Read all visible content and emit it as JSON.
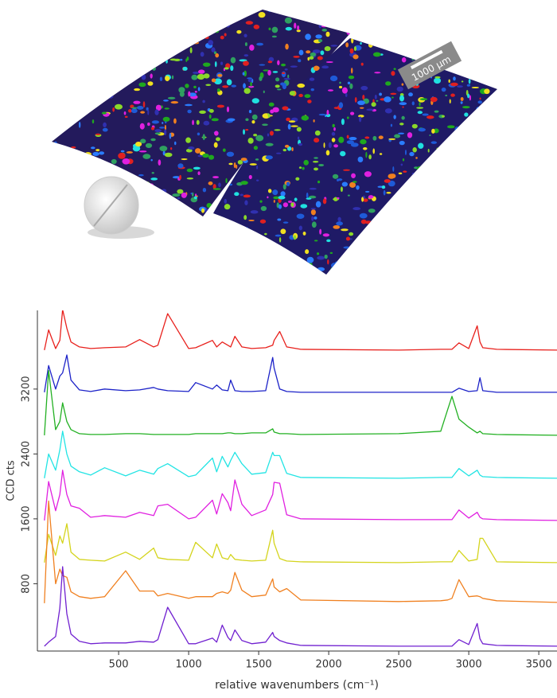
{
  "image": {
    "scale_bar_label": "1000 µm"
  },
  "chart_data": {
    "type": "line",
    "x_label": "relative wavenumbers (cm⁻¹)",
    "y_label": "CCD cts",
    "x": [
      -30,
      0,
      50,
      80,
      100,
      130,
      160,
      220,
      300,
      400,
      550,
      650,
      750,
      780,
      850,
      1000,
      1050,
      1170,
      1200,
      1240,
      1280,
      1300,
      1330,
      1380,
      1450,
      1550,
      1600,
      1610,
      1650,
      1700,
      1800,
      2500,
      2800,
      2850,
      2880,
      2930,
      3000,
      3060,
      3080,
      3100,
      3200,
      3630
    ],
    "series": [
      {
        "color": "#e8201c",
        "values": [
          3680,
          3930,
          3700,
          3800,
          4180,
          3950,
          3780,
          3720,
          3700,
          3710,
          3720,
          3810,
          3720,
          3740,
          4130,
          3700,
          3710,
          3800,
          3720,
          3780,
          3740,
          3720,
          3850,
          3720,
          3700,
          3710,
          3740,
          3800,
          3910,
          3720,
          3690,
          3680,
          3690,
          3690,
          3690,
          3770,
          3700,
          3980,
          3780,
          3710,
          3690,
          3680
        ]
      },
      {
        "color": "#1c22c8",
        "values": [
          3160,
          3490,
          3200,
          3360,
          3400,
          3620,
          3310,
          3190,
          3170,
          3200,
          3180,
          3190,
          3220,
          3200,
          3180,
          3170,
          3280,
          3200,
          3250,
          3190,
          3180,
          3310,
          3180,
          3170,
          3170,
          3180,
          3590,
          3460,
          3200,
          3170,
          3160,
          3160,
          3160,
          3160,
          3160,
          3210,
          3170,
          3180,
          3340,
          3180,
          3160,
          3160
        ]
      },
      {
        "color": "#22b022",
        "values": [
          2630,
          3430,
          2700,
          2800,
          3030,
          2800,
          2700,
          2650,
          2640,
          2640,
          2650,
          2650,
          2640,
          2640,
          2640,
          2640,
          2650,
          2650,
          2650,
          2650,
          2660,
          2660,
          2650,
          2650,
          2660,
          2660,
          2710,
          2670,
          2650,
          2650,
          2640,
          2650,
          2680,
          2950,
          3110,
          2830,
          2730,
          2660,
          2680,
          2650,
          2640,
          2630
        ]
      },
      {
        "color": "#22e4e4",
        "values": [
          2100,
          2400,
          2200,
          2450,
          2680,
          2400,
          2250,
          2180,
          2140,
          2230,
          2130,
          2200,
          2150,
          2220,
          2280,
          2120,
          2140,
          2350,
          2180,
          2370,
          2240,
          2320,
          2420,
          2280,
          2150,
          2170,
          2420,
          2380,
          2380,
          2160,
          2110,
          2100,
          2110,
          2110,
          2110,
          2220,
          2130,
          2200,
          2140,
          2120,
          2110,
          2100
        ]
      },
      {
        "color": "#e020e0",
        "values": [
          1580,
          2060,
          1700,
          1900,
          2200,
          1900,
          1760,
          1730,
          1620,
          1640,
          1620,
          1680,
          1640,
          1760,
          1780,
          1600,
          1620,
          1830,
          1660,
          1910,
          1800,
          1700,
          2080,
          1780,
          1640,
          1710,
          1900,
          2050,
          2040,
          1650,
          1600,
          1590,
          1590,
          1590,
          1590,
          1710,
          1610,
          1680,
          1620,
          1600,
          1590,
          1580
        ]
      },
      {
        "color": "#d4d41c",
        "values": [
          1060,
          1410,
          1150,
          1390,
          1300,
          1540,
          1190,
          1100,
          1090,
          1080,
          1190,
          1100,
          1240,
          1120,
          1100,
          1090,
          1310,
          1120,
          1290,
          1120,
          1100,
          1160,
          1100,
          1090,
          1080,
          1090,
          1460,
          1300,
          1110,
          1080,
          1070,
          1060,
          1070,
          1070,
          1070,
          1210,
          1080,
          1100,
          1360,
          1360,
          1070,
          1060
        ]
      },
      {
        "color": "#f08020",
        "values": [
          560,
          1820,
          800,
          980,
          900,
          880,
          700,
          640,
          620,
          640,
          960,
          710,
          710,
          650,
          680,
          620,
          640,
          640,
          680,
          700,
          680,
          720,
          940,
          720,
          640,
          660,
          860,
          760,
          700,
          740,
          600,
          580,
          590,
          600,
          620,
          850,
          640,
          650,
          640,
          620,
          590,
          570
        ]
      },
      {
        "color": "#7020d0",
        "values": [
          30,
          80,
          150,
          500,
          1010,
          430,
          180,
          90,
          60,
          70,
          70,
          90,
          80,
          110,
          510,
          60,
          60,
          130,
          80,
          290,
          140,
          100,
          230,
          100,
          60,
          80,
          200,
          150,
          100,
          70,
          40,
          30,
          30,
          30,
          30,
          110,
          50,
          310,
          120,
          60,
          40,
          30
        ]
      }
    ],
    "xlim": [
      -80,
      3630
    ],
    "ylim": [
      -30,
      4170
    ],
    "xticks": [
      500,
      1000,
      1500,
      2000,
      2500,
      3000,
      3500
    ],
    "yticks": [
      800,
      1600,
      2400,
      3200
    ]
  }
}
